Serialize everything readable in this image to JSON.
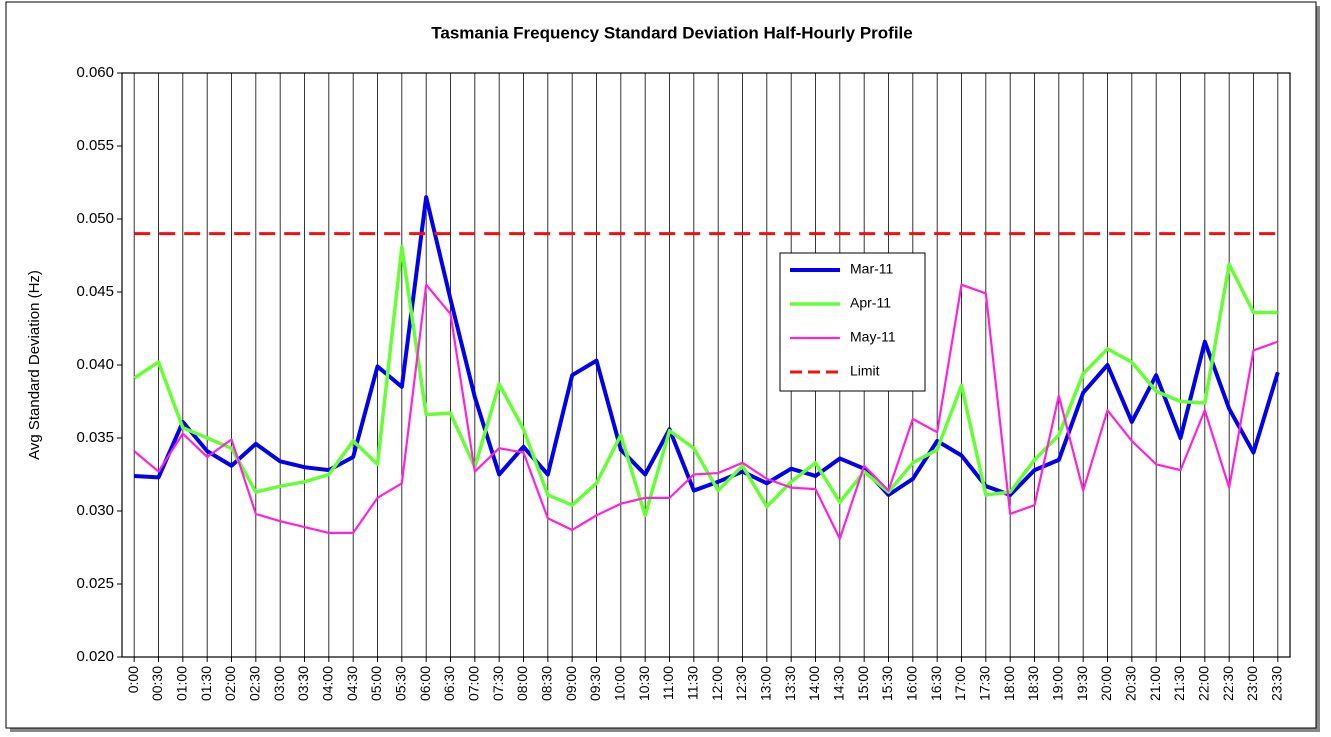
{
  "chart_data": {
    "type": "line",
    "title": "Tasmania Frequency Standard Deviation Half-Hourly Profile",
    "y_label": "Avg Standard Deviation (Hz)",
    "categories": [
      "0:00",
      "00:30",
      "01:00",
      "01:30",
      "02:00",
      "02:30",
      "03:00",
      "03:30",
      "04:00",
      "04:30",
      "05:00",
      "05:30",
      "06:00",
      "06:30",
      "07:00",
      "07:30",
      "08:00",
      "08:30",
      "09:00",
      "09:30",
      "10:00",
      "10:30",
      "11:00",
      "11:30",
      "12:00",
      "12:30",
      "13:00",
      "13:30",
      "14:00",
      "14:30",
      "15:00",
      "15:30",
      "16:00",
      "16:30",
      "17:00",
      "17:30",
      "18:00",
      "18:30",
      "19:00",
      "19:30",
      "20:00",
      "20:30",
      "21:00",
      "21:30",
      "22:00",
      "22:30",
      "23:00",
      "23:30"
    ],
    "series": [
      {
        "name": "Mar-11",
        "color": "#0000ee",
        "line_width": 4,
        "dashed": false,
        "values": [
          0.0324,
          0.0323,
          0.0361,
          0.0341,
          0.0331,
          0.0346,
          0.0334,
          0.033,
          0.0328,
          0.0337,
          0.0399,
          0.0385,
          0.0515,
          0.0445,
          0.0378,
          0.0325,
          0.0344,
          0.0325,
          0.0393,
          0.0403,
          0.0342,
          0.0325,
          0.0356,
          0.0314,
          0.032,
          0.0327,
          0.0319,
          0.0329,
          0.0324,
          0.0336,
          0.0329,
          0.0311,
          0.0322,
          0.0348,
          0.0338,
          0.0317,
          0.0311,
          0.0328,
          0.0335,
          0.0381,
          0.04,
          0.0361,
          0.0393,
          0.035,
          0.0416,
          0.037,
          0.034,
          0.0395
        ]
      },
      {
        "name": "Apr-11",
        "color": "#66ff33",
        "line_width": 3.5,
        "dashed": false,
        "values": [
          0.0391,
          0.0402,
          0.0357,
          0.035,
          0.0343,
          0.0313,
          0.0317,
          0.032,
          0.0325,
          0.0348,
          0.0332,
          0.0481,
          0.0366,
          0.0367,
          0.033,
          0.0387,
          0.0356,
          0.0311,
          0.0304,
          0.0319,
          0.0352,
          0.0297,
          0.0355,
          0.0343,
          0.0314,
          0.0331,
          0.0303,
          0.032,
          0.0333,
          0.0306,
          0.0327,
          0.0313,
          0.0333,
          0.0342,
          0.0386,
          0.0311,
          0.0313,
          0.0335,
          0.0352,
          0.0394,
          0.0411,
          0.0402,
          0.0382,
          0.0375,
          0.0374,
          0.0469,
          0.0436,
          0.0436
        ]
      },
      {
        "name": "May-11",
        "color": "#ff22dd",
        "line_width": 2.2,
        "dashed": false,
        "values": [
          0.0341,
          0.0327,
          0.0353,
          0.0337,
          0.0349,
          0.0298,
          0.0293,
          0.0289,
          0.0285,
          0.0285,
          0.0309,
          0.0319,
          0.0455,
          0.0435,
          0.0327,
          0.0343,
          0.034,
          0.0295,
          0.0287,
          0.0297,
          0.0305,
          0.0309,
          0.0309,
          0.0325,
          0.0326,
          0.0333,
          0.0322,
          0.0316,
          0.0315,
          0.0281,
          0.0331,
          0.0314,
          0.0363,
          0.0354,
          0.0455,
          0.0449,
          0.0298,
          0.0304,
          0.0379,
          0.0314,
          0.0369,
          0.0348,
          0.0332,
          0.0328,
          0.0369,
          0.0316,
          0.041,
          0.0416
        ]
      },
      {
        "name": "Limit",
        "color": "#ee1111",
        "line_width": 3,
        "dashed": true,
        "values": [
          0.049,
          0.049,
          0.049,
          0.049,
          0.049,
          0.049,
          0.049,
          0.049,
          0.049,
          0.049,
          0.049,
          0.049,
          0.049,
          0.049,
          0.049,
          0.049,
          0.049,
          0.049,
          0.049,
          0.049,
          0.049,
          0.049,
          0.049,
          0.049,
          0.049,
          0.049,
          0.049,
          0.049,
          0.049,
          0.049,
          0.049,
          0.049,
          0.049,
          0.049,
          0.049,
          0.049,
          0.049,
          0.049,
          0.049,
          0.049,
          0.049,
          0.049,
          0.049,
          0.049,
          0.049,
          0.049,
          0.049,
          0.049
        ]
      }
    ],
    "ylim": [
      0.02,
      0.06
    ],
    "yticks": [
      {
        "value": 0.02,
        "label": "0.020"
      },
      {
        "value": 0.025,
        "label": "0.025"
      },
      {
        "value": 0.03,
        "label": "0.030"
      },
      {
        "value": 0.035,
        "label": "0.035"
      },
      {
        "value": 0.04,
        "label": "0.040"
      },
      {
        "value": 0.045,
        "label": "0.045"
      },
      {
        "value": 0.05,
        "label": "0.050"
      },
      {
        "value": 0.055,
        "label": "0.055"
      },
      {
        "value": 0.06,
        "label": "0.060"
      }
    ],
    "grid": false,
    "x_grid": true,
    "legend": "center"
  }
}
